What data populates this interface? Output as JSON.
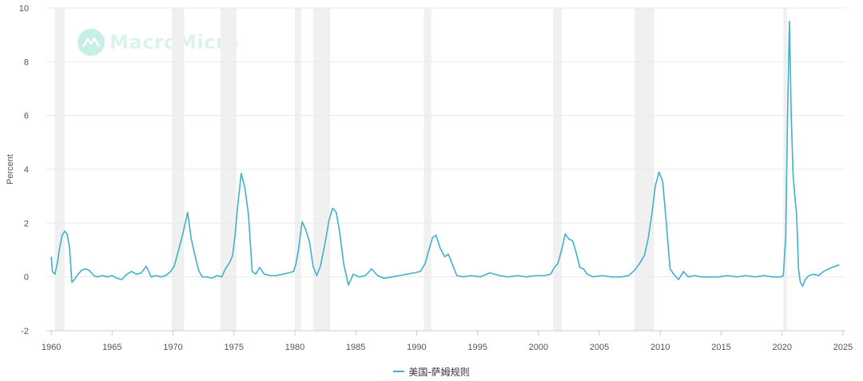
{
  "watermark": {
    "text": "MacroMicro"
  },
  "colors": {
    "line": "#3fb1cb",
    "recession": "#f0f0f0",
    "grid": "#e9e9e9",
    "axis": "#cccccc"
  },
  "chart_data": {
    "type": "line",
    "title": "",
    "xlabel": "",
    "ylabel": "Percent",
    "xlim": [
      1959.6,
      2025.2
    ],
    "ylim": [
      -2,
      10
    ],
    "yticks": [
      -2,
      0,
      2,
      4,
      6,
      8,
      10
    ],
    "xticks": [
      1960,
      1965,
      1970,
      1975,
      1980,
      1985,
      1990,
      1995,
      2000,
      2005,
      2010,
      2015,
      2020,
      2025
    ],
    "grid": true,
    "legend_position": "bottom-center",
    "recessions": [
      [
        1960.3,
        1961.1
      ],
      [
        1969.9,
        1970.9
      ],
      [
        1973.9,
        1975.2
      ],
      [
        1980.0,
        1980.5
      ],
      [
        1981.5,
        1982.9
      ],
      [
        1990.6,
        1991.2
      ],
      [
        2001.2,
        2001.9
      ],
      [
        2007.9,
        2009.5
      ],
      [
        2020.1,
        2020.4
      ]
    ],
    "series": [
      {
        "name": "美国-萨姆规则",
        "x": [
          1960.0,
          1960.1,
          1960.3,
          1960.5,
          1960.7,
          1960.9,
          1961.1,
          1961.3,
          1961.5,
          1961.7,
          1961.9,
          1962.2,
          1962.5,
          1962.8,
          1963.1,
          1963.5,
          1963.8,
          1964.2,
          1964.6,
          1965.0,
          1965.4,
          1965.8,
          1966.2,
          1966.6,
          1967.0,
          1967.4,
          1967.8,
          1968.2,
          1968.6,
          1969.0,
          1969.4,
          1969.8,
          1970.1,
          1970.4,
          1970.7,
          1971.0,
          1971.2,
          1971.5,
          1971.8,
          1972.1,
          1972.4,
          1972.8,
          1973.2,
          1973.6,
          1974.0,
          1974.3,
          1974.6,
          1974.9,
          1975.1,
          1975.3,
          1975.6,
          1975.9,
          1976.2,
          1976.5,
          1976.8,
          1977.1,
          1977.5,
          1978.0,
          1978.5,
          1979.0,
          1979.5,
          1979.9,
          1980.1,
          1980.3,
          1980.6,
          1980.9,
          1981.2,
          1981.5,
          1981.8,
          1982.1,
          1982.5,
          1982.8,
          1983.1,
          1983.4,
          1983.7,
          1984.0,
          1984.4,
          1984.8,
          1985.3,
          1985.8,
          1986.3,
          1986.8,
          1987.3,
          1988.0,
          1988.6,
          1989.2,
          1989.8,
          1990.3,
          1990.7,
          1991.0,
          1991.3,
          1991.6,
          1991.9,
          1992.3,
          1992.6,
          1992.9,
          1993.3,
          1993.8,
          1994.5,
          1995.2,
          1996.0,
          1996.8,
          1997.5,
          1998.3,
          1999.0,
          1999.8,
          2000.5,
          2001.0,
          2001.3,
          2001.6,
          2001.9,
          2002.2,
          2002.5,
          2002.8,
          2003.1,
          2003.4,
          2003.7,
          2004.0,
          2004.5,
          2005.2,
          2006.0,
          2006.8,
          2007.4,
          2007.9,
          2008.3,
          2008.7,
          2009.0,
          2009.3,
          2009.6,
          2009.9,
          2010.2,
          2010.5,
          2010.8,
          2011.1,
          2011.5,
          2011.9,
          2012.3,
          2012.8,
          2013.4,
          2014.0,
          2014.8,
          2015.5,
          2016.3,
          2017.0,
          2017.8,
          2018.5,
          2019.2,
          2019.9,
          2020.1,
          2020.3,
          2020.45,
          2020.6,
          2020.75,
          2020.9,
          2021.05,
          2021.2,
          2021.35,
          2021.5,
          2021.7,
          2021.9,
          2022.2,
          2022.6,
          2023.0,
          2023.4,
          2023.8,
          2024.1,
          2024.4,
          2024.7
        ],
        "y": [
          0.75,
          0.2,
          0.1,
          0.5,
          1.1,
          1.55,
          1.7,
          1.6,
          1.1,
          -0.2,
          -0.1,
          0.1,
          0.25,
          0.3,
          0.25,
          0.05,
          0.0,
          0.05,
          0.0,
          0.05,
          -0.05,
          -0.1,
          0.1,
          0.2,
          0.1,
          0.15,
          0.4,
          0.0,
          0.05,
          0.0,
          0.05,
          0.2,
          0.4,
          0.9,
          1.4,
          2.0,
          2.4,
          1.4,
          0.8,
          0.25,
          0.0,
          0.0,
          -0.05,
          0.05,
          0.0,
          0.3,
          0.5,
          0.8,
          1.6,
          2.6,
          3.85,
          3.3,
          2.3,
          0.2,
          0.1,
          0.35,
          0.1,
          0.05,
          0.05,
          0.1,
          0.15,
          0.2,
          0.5,
          1.0,
          2.05,
          1.75,
          1.3,
          0.4,
          0.05,
          0.4,
          1.3,
          2.1,
          2.55,
          2.4,
          1.6,
          0.5,
          -0.3,
          0.1,
          0.0,
          0.05,
          0.3,
          0.05,
          -0.05,
          0.0,
          0.05,
          0.1,
          0.15,
          0.2,
          0.5,
          1.0,
          1.45,
          1.55,
          1.1,
          0.75,
          0.85,
          0.5,
          0.05,
          0.0,
          0.05,
          0.0,
          0.15,
          0.05,
          0.0,
          0.05,
          0.0,
          0.05,
          0.05,
          0.1,
          0.35,
          0.5,
          1.0,
          1.6,
          1.4,
          1.35,
          0.9,
          0.35,
          0.3,
          0.1,
          0.0,
          0.05,
          0.0,
          0.0,
          0.05,
          0.25,
          0.5,
          0.8,
          1.4,
          2.3,
          3.4,
          3.9,
          3.55,
          2.0,
          0.3,
          0.1,
          -0.1,
          0.2,
          0.0,
          0.05,
          0.0,
          0.0,
          0.0,
          0.05,
          0.0,
          0.05,
          0.0,
          0.05,
          0.0,
          0.0,
          0.05,
          1.5,
          6.0,
          9.5,
          6.0,
          3.8,
          3.0,
          2.3,
          0.3,
          -0.2,
          -0.35,
          -0.1,
          0.05,
          0.1,
          0.05,
          0.2,
          0.3,
          0.35,
          0.4,
          0.45
        ]
      }
    ]
  }
}
